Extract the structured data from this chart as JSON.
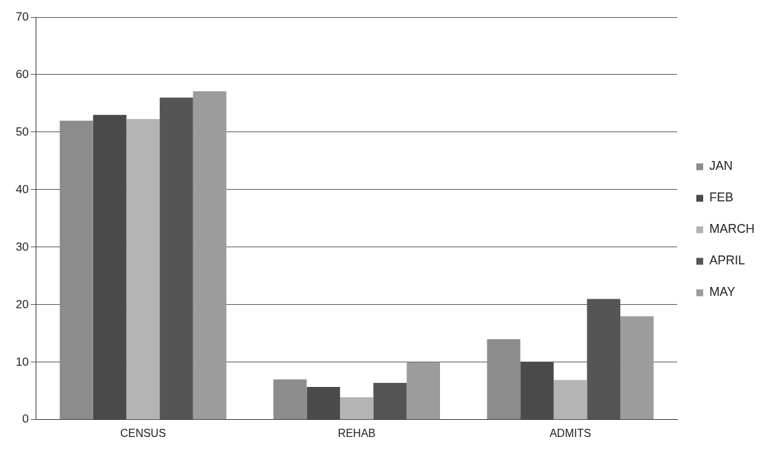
{
  "chart_data": {
    "type": "bar",
    "categories": [
      "CENSUS",
      "REHAB",
      "ADMITS"
    ],
    "series": [
      {
        "name": "JAN",
        "color": "#8c8c8c",
        "values": [
          52,
          7,
          14
        ]
      },
      {
        "name": "FEB",
        "color": "#4a4a4a",
        "values": [
          53,
          5.7,
          10
        ]
      },
      {
        "name": "MARCH",
        "color": "#b4b4b4",
        "values": [
          52.3,
          3.9,
          6.9
        ]
      },
      {
        "name": "APRIL",
        "color": "#555555",
        "values": [
          56,
          6.4,
          21
        ]
      },
      {
        "name": "MAY",
        "color": "#9c9c9c",
        "values": [
          57.1,
          10,
          18
        ]
      }
    ],
    "ylim": [
      0,
      70
    ],
    "yticks": [
      0,
      10,
      20,
      30,
      40,
      50,
      60,
      70
    ],
    "grid": "y",
    "legend": "right"
  }
}
